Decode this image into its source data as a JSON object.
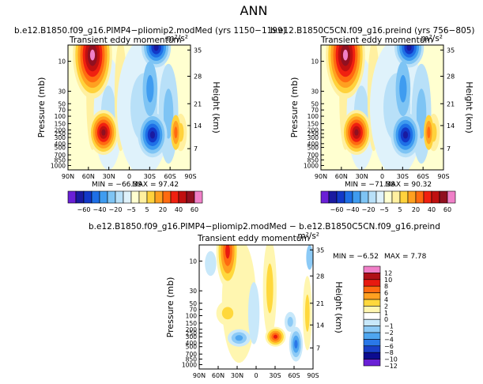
{
  "page": {
    "title": "ANN"
  },
  "palette": {
    "top": [
      "#6a20d6",
      "#1a1aa0",
      "#1238c8",
      "#1e6fe6",
      "#3f9cf0",
      "#7ec4f4",
      "#b8e0f8",
      "#dff2fb",
      "#ffffd0",
      "#fff0a0",
      "#ffd23c",
      "#ffa020",
      "#ff6a10",
      "#f02010",
      "#c01010",
      "#901020",
      "#f080c8"
    ],
    "diff": [
      "#6a20d6",
      "#0c0c90",
      "#1a40c8",
      "#2a78e8",
      "#4ea6f0",
      "#8ccaf6",
      "#c8e8fa",
      "#ffffff",
      "#fff6b0",
      "#ffd83c",
      "#ffa020",
      "#ff6a10",
      "#e81a10",
      "#b01018",
      "#f080c8"
    ],
    "c_ttl": "#000000"
  },
  "chart_data": [
    {
      "id": "left",
      "type": "contour",
      "title": "b.e12.B1850.f09_g16.PIMP4−pliomip2.modMed  (yrs 1150−1199)",
      "subtitle_left": "Transient eddy momentum",
      "subtitle_right": "m²/s²",
      "ylabel": "Pressure (mb)",
      "ylabel2": "Height (km)",
      "x_ticks": [
        "90N",
        "60N",
        "30N",
        "0",
        "30S",
        "60S",
        "90S"
      ],
      "y_ticks": [
        "10",
        "30",
        "50",
        "70",
        "100",
        "150",
        "200",
        "250",
        "300",
        "400",
        "500",
        "700",
        "850",
        "1000"
      ],
      "height_ticks": [
        "35",
        "28",
        "21",
        "14",
        "7"
      ],
      "min_label": "MIN = −66.39",
      "max_label": "MAX =  97.42",
      "min": -66.39,
      "max": 97.42,
      "features": [
        {
          "lat": 61,
          "level": 0.08,
          "value": 97.4
        },
        {
          "lat": 29,
          "level": 0.68,
          "value": 52
        },
        {
          "lat": -40,
          "level": 0.7,
          "value": -66.4
        },
        {
          "lat": -45,
          "level": 0.02,
          "value": -45
        },
        {
          "lat": -62,
          "level": 0.72,
          "value": 22
        }
      ]
    },
    {
      "id": "right",
      "type": "contour",
      "title": "b.e12.B1850C5CN.f09_g16.preind  (yrs 756−805)",
      "subtitle_left": "Transient eddy momentum",
      "subtitle_right": "m²/s²",
      "ylabel": "Pressure (mb)",
      "ylabel2": "Height (km)",
      "x_ticks": [
        "90N",
        "60N",
        "30N",
        "0",
        "30S",
        "60S",
        "90S"
      ],
      "y_ticks": [
        "10",
        "30",
        "50",
        "70",
        "100",
        "150",
        "200",
        "250",
        "300",
        "400",
        "500",
        "700",
        "850",
        "1000"
      ],
      "height_ticks": [
        "35",
        "28",
        "21",
        "14",
        "7"
      ],
      "min_label": "MIN = −71.38",
      "max_label": "MAX =  90.32",
      "min": -71.38,
      "max": 90.32,
      "features": [
        {
          "lat": 60,
          "level": 0.08,
          "value": 90.3
        },
        {
          "lat": 30,
          "level": 0.68,
          "value": 55
        },
        {
          "lat": -42,
          "level": 0.7,
          "value": -71.4
        },
        {
          "lat": -45,
          "level": 0.02,
          "value": -50
        },
        {
          "lat": -62,
          "level": 0.72,
          "value": 24
        }
      ]
    },
    {
      "id": "diff",
      "type": "contour",
      "title": "b.e12.B1850.f09_g16.PIMP4−pliomip2.modMed − b.e12.B1850C5CN.f09_g16.preind",
      "subtitle_left": "Transient eddy momentum",
      "subtitle_right": "m²/s²",
      "ylabel": "Pressure (mb)",
      "ylabel2": "Height (km)",
      "x_ticks": [
        "90N",
        "60N",
        "30N",
        "0",
        "30S",
        "60S",
        "90S"
      ],
      "y_ticks": [
        "10",
        "30",
        "50",
        "70",
        "100",
        "150",
        "200",
        "250",
        "300",
        "400",
        "500",
        "700",
        "850",
        "1000"
      ],
      "height_ticks": [
        "35",
        "28",
        "21",
        "14",
        "7"
      ],
      "min_label": "MIN =  −6.52",
      "max_label": "MAX =   7.78",
      "min": -6.52,
      "max": 7.78
    }
  ],
  "colorbar_top": {
    "levels": [
      "−60",
      "−40",
      "−20",
      "−5",
      "5",
      "20",
      "40",
      "60"
    ]
  },
  "colorbar_diff": {
    "levels": [
      "12",
      "10",
      "8",
      "6",
      "4",
      "2",
      "1",
      "0",
      "−1",
      "−2",
      "−4",
      "−6",
      "−8",
      "−10",
      "−12"
    ]
  }
}
